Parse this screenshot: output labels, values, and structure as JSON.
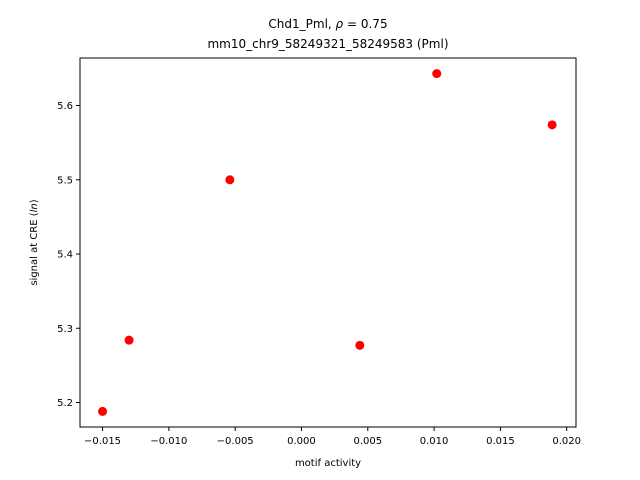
{
  "chart_data": {
    "type": "scatter",
    "title_line1_prefix": "Chd1_Pml, ",
    "title_rho_symbol": "ρ",
    "title_rho_value": " = 0.75",
    "title_line2": "mm10_chr9_58249321_58249583 (Pml)",
    "xlabel": "motif activity",
    "ylabel_prefix": "signal at CRE (",
    "ylabel_italic": "ln",
    "ylabel_suffix": ")",
    "xlim": [
      -0.0167,
      0.0207
    ],
    "ylim": [
      5.167,
      5.664
    ],
    "x_ticks": [
      -0.015,
      -0.01,
      -0.005,
      0.0,
      0.005,
      0.01,
      0.015,
      0.02
    ],
    "x_tick_labels": [
      "−0.015",
      "−0.010",
      "−0.005",
      "0.000",
      "0.005",
      "0.010",
      "0.015",
      "0.020"
    ],
    "y_ticks": [
      5.2,
      5.3,
      5.4,
      5.5,
      5.6
    ],
    "y_tick_labels": [
      "5.2",
      "5.3",
      "5.4",
      "5.5",
      "5.6"
    ],
    "point_color": "#ff0000",
    "grid": false,
    "points": [
      {
        "x": -0.015,
        "y": 5.188
      },
      {
        "x": -0.013,
        "y": 5.284
      },
      {
        "x": -0.0054,
        "y": 5.5
      },
      {
        "x": 0.0044,
        "y": 5.277
      },
      {
        "x": 0.0102,
        "y": 5.643
      },
      {
        "x": 0.0189,
        "y": 5.574
      }
    ]
  }
}
